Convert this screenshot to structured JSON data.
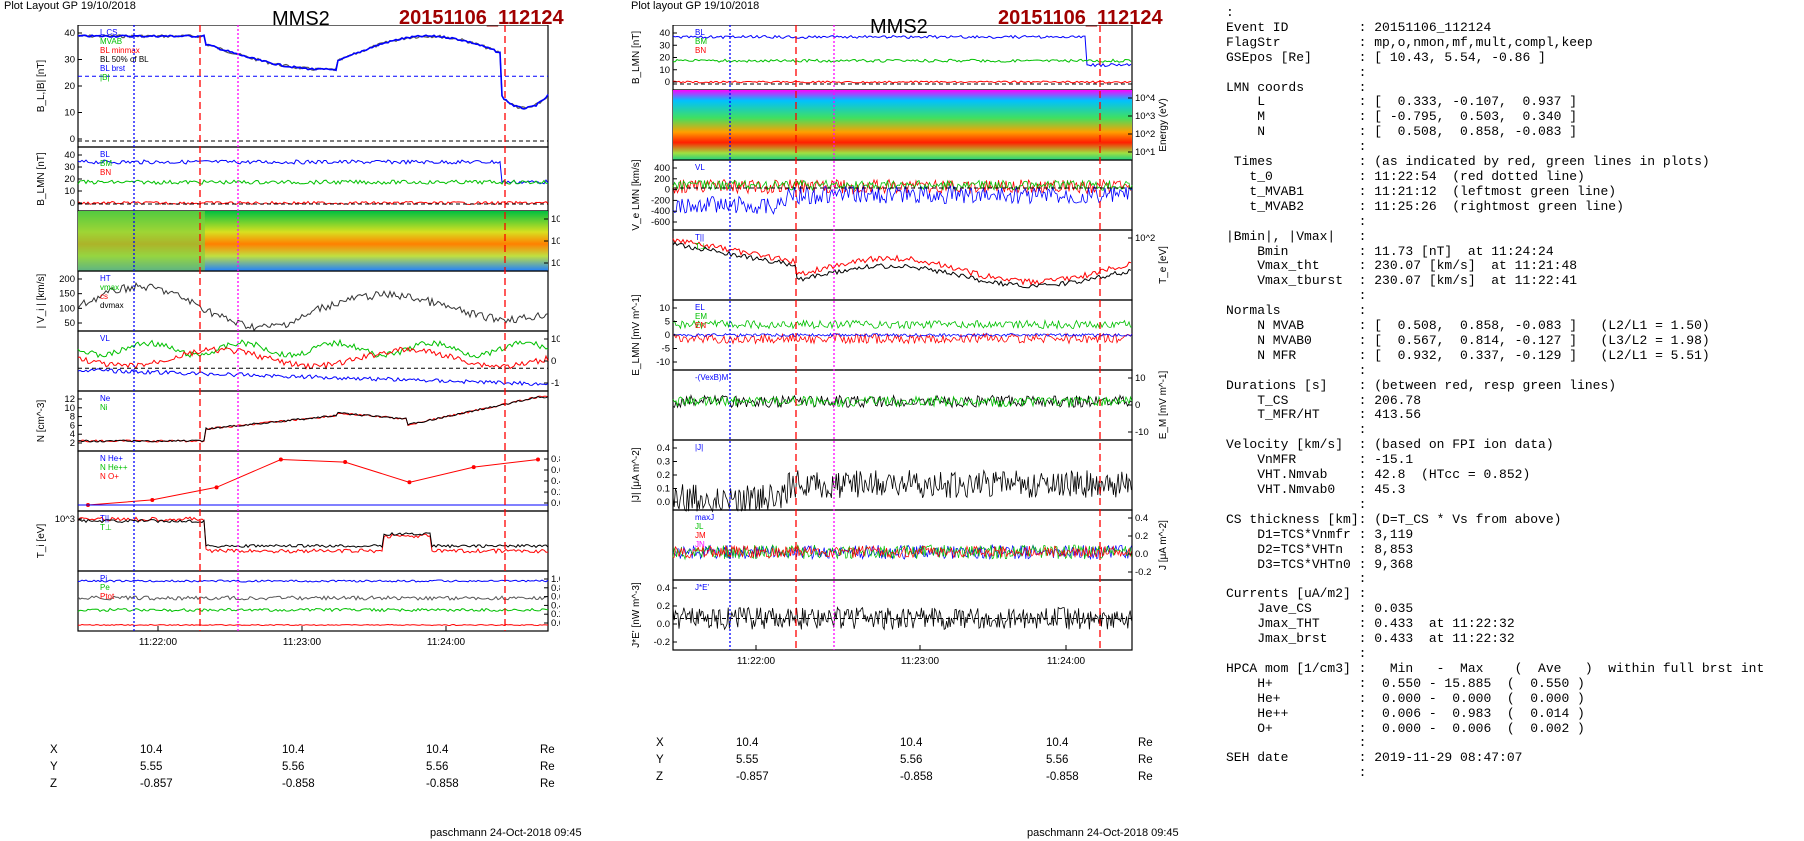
{
  "left_header": {
    "layout": "Plot Layout GP 19/10/2018",
    "sc": "MMS2",
    "event": "20151106_112124"
  },
  "mid_header": {
    "layout": "Plot layout GP 19/10/2018",
    "sc": "MMS2",
    "event": "20151106_112124"
  },
  "footer": {
    "left": "paschmann 24-Oct-2018 09:45",
    "mid": "paschmann 24-Oct-2018 09:45"
  },
  "colors": {
    "event": "#a00000",
    "red_line": "#ff0000",
    "blue_line": "#0000ff",
    "magenta_line": "#ff00ff",
    "green": "#00c000"
  },
  "time_axis": {
    "ticks": [
      "11:22:00",
      "11:23:00",
      "11:24:00"
    ]
  },
  "positions": {
    "labels": [
      "X",
      "Y",
      "Z"
    ],
    "unit": "Re",
    "left": [
      [
        "10.4",
        "10.4",
        "10.4"
      ],
      [
        "5.55",
        "5.56",
        "5.56"
      ],
      [
        "-0.857",
        "-0.858",
        "-0.858"
      ]
    ],
    "mid": [
      [
        "10.4",
        "10.4",
        "10.4"
      ],
      [
        "5.55",
        "5.56",
        "5.56"
      ],
      [
        "-0.857",
        "-0.858",
        "-0.858"
      ]
    ]
  },
  "left_panels": [
    {
      "ylabel": "B_L,|B| [nT]",
      "yticks": [
        "40",
        "30",
        "20",
        "10",
        "0"
      ],
      "legend": [
        "L CS",
        "MVAB",
        "BL minmax",
        "BL 50% of BL",
        "BL brst",
        "|B|"
      ]
    },
    {
      "ylabel": "B_LMN [nT]",
      "yticks": [
        "40",
        "30",
        "20",
        "10",
        "0"
      ],
      "legend": [
        "BL",
        "BM",
        "BN"
      ]
    },
    {
      "ylabel": "Energy (eV)",
      "yticks": [
        "10^4",
        "10^3",
        "10^2"
      ]
    },
    {
      "ylabel": "| V_i | [km/s]",
      "yticks": [
        "200",
        "150",
        "100",
        "50"
      ],
      "legend": [
        "HT",
        "vmax",
        "cs",
        "dvmax"
      ]
    },
    {
      "ylabel": "V_i LMN [km/s]",
      "yticks": [
        "100",
        "0",
        "-100"
      ],
      "legend": [
        "VL"
      ]
    },
    {
      "ylabel": "N [cm^-3]",
      "yticks": [
        "12",
        "10",
        "8",
        "6",
        "4",
        "2"
      ],
      "legend": [
        "Ne",
        "Ni"
      ]
    },
    {
      "ylabel": "N_i [cm^-3]",
      "yticks": [
        "0.8",
        "0.6",
        "0.4",
        "0.2",
        "0.0"
      ],
      "legend": [
        "N He+",
        "N He++",
        "N O+"
      ]
    },
    {
      "ylabel": "T_i [eV]",
      "yticks": [
        "10^3"
      ],
      "legend": [
        "T||",
        "T⊥"
      ]
    },
    {
      "ylabel": "P [nPa]",
      "yticks": [
        "1.0",
        "0.8",
        "0.6",
        "0.4",
        "0.2",
        "0.0"
      ],
      "legend": [
        "Pi",
        "Pe",
        "Ptot"
      ]
    }
  ],
  "mid_panels": [
    {
      "ylabel": "B_LMN [nT]",
      "yticks": [
        "40",
        "30",
        "20",
        "10",
        "0"
      ],
      "legend": [
        "BL",
        "BM",
        "BN"
      ]
    },
    {
      "ylabel": "Energy (eV)",
      "yticks": [
        "10^4",
        "10^3",
        "10^2",
        "10^1"
      ]
    },
    {
      "ylabel": "V_e LMN [km/s]",
      "yticks": [
        "400",
        "200",
        "0",
        "-200",
        "-400",
        "-600"
      ],
      "legend": [
        "VL"
      ]
    },
    {
      "ylabel": "T_e [eV]",
      "yticks": [
        "10^2"
      ],
      "legend": [
        "T||",
        "T⊥"
      ]
    },
    {
      "ylabel": "E_LMN [mV m^-1]",
      "yticks": [
        "10",
        "5",
        "0",
        "-5",
        "-10"
      ],
      "legend": [
        "EL",
        "EM",
        "EN"
      ]
    },
    {
      "ylabel": "E_M [mV m^-1]",
      "yticks": [
        "10",
        "0",
        "-10"
      ],
      "legend": [
        "-(VexB)M"
      ]
    },
    {
      "ylabel": "|J| [μA m^-2]",
      "yticks": [
        "0.4",
        "0.3",
        "0.2",
        "0.1",
        "0.0"
      ],
      "legend": [
        "|J|"
      ]
    },
    {
      "ylabel": "J [μA m^-2]",
      "yticks": [
        "0.4",
        "0.2",
        "0.0",
        "-0.2"
      ],
      "legend": [
        "maxJ",
        "JL",
        "JM",
        "JN"
      ]
    },
    {
      "ylabel": "J*E' [nW m^-3]",
      "yticks": [
        "0.4",
        "0.2",
        "0.0",
        "-0.2"
      ],
      "legend": [
        "J*E'"
      ]
    }
  ],
  "right_panel": {
    "lines": [
      ":",
      "Event ID         : 20151106_112124",
      "FlagStr          : mp,o,nmon,mf,mult,compl,keep",
      "GSEpos [Re]      : [ 10.43, 5.54, -0.86 ]",
      "                 :",
      "LMN coords       :",
      "    L            : [  0.333, -0.107,  0.937 ]",
      "    M            : [ -0.795,  0.503,  0.340 ]",
      "    N            : [  0.508,  0.858, -0.083 ]",
      "                 :",
      " Times           : (as indicated by red, green lines in plots)",
      "   t_0           : 11:22:54  (red dotted line)",
      "   t_MVAB1       : 11:21:12  (leftmost green line)",
      "   t_MVAB2       : 11:25:26  (rightmost green line)",
      "                 :",
      "|Bmin|, |Vmax|   :",
      "    Bmin         : 11.73 [nT]  at 11:24:24",
      "    Vmax_tht     : 230.07 [km/s]  at 11:21:48",
      "    Vmax_tburst  : 230.07 [km/s]  at 11:22:41",
      "                 :",
      "Normals          :",
      "    N MVAB       : [  0.508,  0.858, -0.083 ]   (L2/L1 = 1.50)",
      "    N MVAB0      : [  0.567,  0.814, -0.127 ]   (L3/L2 = 1.98)",
      "    N MFR        : [  0.932,  0.337, -0.129 ]   (L2/L1 = 5.51)",
      "                 :",
      "Durations [s]    : (between red, resp green lines)",
      "    T_CS         : 206.78",
      "    T_MFR/HT     : 413.56",
      "                 :",
      "Velocity [km/s]  : (based on FPI ion data)",
      "    VnMFR        : -15.1",
      "    VHT.Nmvab    : 42.8  (HTcc = 0.852)",
      "    VHT.Nmvab0   : 45.3",
      "                 :",
      "CS thickness [km]: (D=T_CS * Vs from above)",
      "    D1=TCS*Vnmfr : 3,119",
      "    D2=TCS*VHTn  : 8,853",
      "    D3=TCS*VHTn0 : 9,368",
      "                 :",
      "Currents [uA/m2] :",
      "    Jave_CS      : 0.035",
      "    Jmax_THT     : 0.433  at 11:22:32",
      "    Jmax_brst    : 0.433  at 11:22:32",
      "                 :",
      "HPCA mom [1/cm3] :   Min   -  Max    (  Ave   )  within full brst int",
      "    H+           :  0.550 - 15.885  (  0.550 )",
      "    He+          :  0.000 -  0.000  (  0.000 )",
      "    He++         :  0.006 -  0.983  (  0.014 )",
      "    O+           :  0.000 -  0.006  (  0.002 )",
      "                 :",
      "SEH date         : 2019-11-29 08:47:07",
      "                 :"
    ]
  },
  "chart_data": [
    {
      "type": "line",
      "title": "MMS2 20151106_112124",
      "xlabel": "",
      "x_ticks": [
        "11:22:00",
        "11:23:00",
        "11:24:00"
      ],
      "series": [
        {
          "name": "|B|",
          "x": [
            "11:21:24",
            "11:22:00",
            "11:22:24",
            "11:23:00",
            "11:23:24",
            "11:24:00",
            "11:24:24",
            "11:24:36"
          ],
          "values": [
            40,
            39,
            36,
            26,
            36,
            40,
            12,
            24
          ]
        },
        {
          "name": "Ni",
          "x": [
            "11:21:24",
            "11:22:00",
            "11:22:24",
            "11:23:00",
            "11:23:24",
            "11:24:00",
            "11:24:36"
          ],
          "values": [
            1,
            1.5,
            5,
            12,
            6,
            8,
            12
          ]
        },
        {
          "name": "N He++",
          "x": [
            "11:21:24",
            "11:22:00",
            "11:22:24",
            "11:22:36",
            "11:23:00",
            "11:23:24",
            "11:24:00",
            "11:24:24"
          ],
          "values": [
            0.0,
            0.1,
            0.35,
            0.9,
            0.85,
            0.45,
            0.75,
            0.9
          ]
        }
      ]
    },
    {
      "type": "line",
      "title": "MMS2 20151106_112124",
      "xlabel": "",
      "x_ticks": [
        "11:22:00",
        "11:23:00",
        "11:24:00"
      ],
      "series": [
        {
          "name": "|J|",
          "x": [
            "11:21:24",
            "11:22:00",
            "11:22:36",
            "11:23:00",
            "11:24:00",
            "11:24:30"
          ],
          "values": [
            0.02,
            0.05,
            0.43,
            0.15,
            0.2,
            0.08
          ]
        }
      ]
    }
  ]
}
